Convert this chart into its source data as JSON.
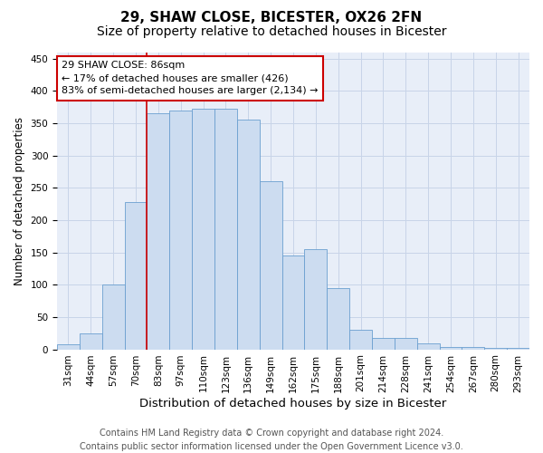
{
  "title1": "29, SHAW CLOSE, BICESTER, OX26 2FN",
  "title2": "Size of property relative to detached houses in Bicester",
  "xlabel": "Distribution of detached houses by size in Bicester",
  "ylabel": "Number of detached properties",
  "categories": [
    "31sqm",
    "44sqm",
    "57sqm",
    "70sqm",
    "83sqm",
    "97sqm",
    "110sqm",
    "123sqm",
    "136sqm",
    "149sqm",
    "162sqm",
    "175sqm",
    "188sqm",
    "201sqm",
    "214sqm",
    "228sqm",
    "241sqm",
    "254sqm",
    "267sqm",
    "280sqm",
    "293sqm"
  ],
  "values": [
    8,
    25,
    100,
    228,
    365,
    370,
    373,
    373,
    355,
    260,
    145,
    155,
    95,
    30,
    18,
    18,
    9,
    4,
    4,
    2,
    2
  ],
  "bar_color": "#ccdcf0",
  "bar_edge_color": "#6a9fd0",
  "grid_color": "#c8d4e8",
  "bg_color": "#e8eef8",
  "annotation_text": "29 SHAW CLOSE: 86sqm\n← 17% of detached houses are smaller (426)\n83% of semi-detached houses are larger (2,134) →",
  "annotation_box_color": "#ffffff",
  "annotation_box_edge": "#cc0000",
  "red_line_color": "#cc0000",
  "red_line_x": 4,
  "ylim": [
    0,
    460
  ],
  "yticks": [
    0,
    50,
    100,
    150,
    200,
    250,
    300,
    350,
    400,
    450
  ],
  "footer1": "Contains HM Land Registry data © Crown copyright and database right 2024.",
  "footer2": "Contains public sector information licensed under the Open Government Licence v3.0.",
  "title1_fontsize": 11,
  "title2_fontsize": 10,
  "xlabel_fontsize": 9.5,
  "ylabel_fontsize": 8.5,
  "tick_fontsize": 7.5,
  "annotation_fontsize": 8,
  "footer_fontsize": 7
}
